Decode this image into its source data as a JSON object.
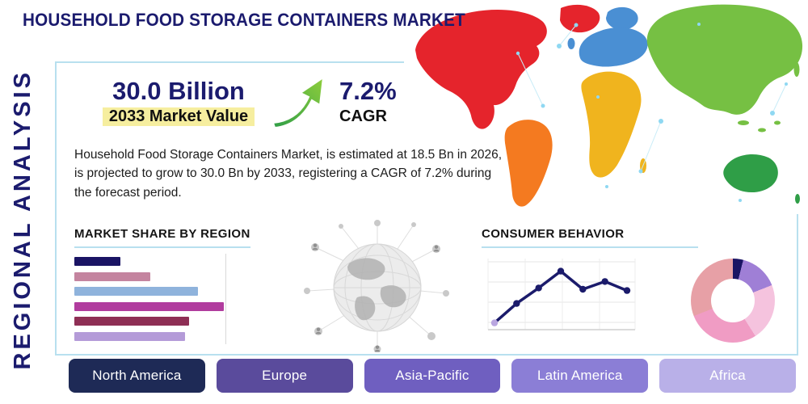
{
  "page": {
    "title": "HOUSEHOLD FOOD STORAGE CONTAINERS MARKET",
    "side_label": "REGIONAL ANALYSIS"
  },
  "stats": {
    "market_value": {
      "value": "30.0 Billion",
      "label": "2033 Market Value"
    },
    "cagr": {
      "value": "7.2%",
      "label": "CAGR"
    }
  },
  "description": "Household Food Storage Containers Market, is estimated at 18.5 Bn in 2026, is projected to grow to 30.0 Bn by 2033, registering a CAGR of 7.2% during the forecast period.",
  "sections": {
    "market_share_title": "MARKET SHARE BY REGION",
    "consumer_behavior_title": "CONSUMER BEHAVIOR"
  },
  "regions": [
    {
      "label": "North America",
      "color": "#1e2a56"
    },
    {
      "label": "Europe",
      "color": "#5a4b9c"
    },
    {
      "label": "Asia-Pacific",
      "color": "#6f5fc0"
    },
    {
      "label": "Latin America",
      "color": "#8b7ed6"
    },
    {
      "label": "Africa",
      "color": "#b9b0e8"
    }
  ],
  "map": {
    "colors": {
      "north_america": "#e5242c",
      "greenland": "#e5242c",
      "south_america": "#f47a20",
      "europe": "#4a8fd3",
      "scandinavia": "#4a8fd3",
      "africa": "#f0b41e",
      "asia": "#76c043",
      "australia": "#2f9e47",
      "network_dot": "#8fd8f2"
    }
  },
  "chart_data": [
    {
      "type": "bar",
      "title": "MARKET SHARE BY REGION",
      "orientation": "horizontal",
      "values": [
        26,
        43,
        70,
        85,
        65,
        63
      ],
      "unit": "relative-width-%",
      "colors": [
        "#1a1464",
        "#c4849f",
        "#8fb3dc",
        "#b13c9e",
        "#8e2f55",
        "#b49bd8"
      ],
      "grid": true
    },
    {
      "type": "line",
      "title": "CONSUMER BEHAVIOR",
      "x": [
        1,
        2,
        3,
        4,
        5,
        6,
        7
      ],
      "values": [
        8,
        38,
        62,
        88,
        60,
        72,
        58
      ],
      "unit": "relative-height-%",
      "color": "#1b1b6b",
      "first_marker_color": "#b9a6e0",
      "grid": true
    },
    {
      "type": "pie",
      "donut": true,
      "title": "Regional share donut",
      "values": [
        4,
        15,
        22,
        28,
        31
      ],
      "colors": [
        "#1a1464",
        "#9f7fd6",
        "#f5c3de",
        "#f09cc4",
        "#e7a0a6"
      ]
    }
  ],
  "accent": {
    "panel_border": "#b8e0ef",
    "navy": "#1b1b6e",
    "highlight": "#f6ee9f",
    "arrow_green_light": "#8fce3c",
    "arrow_green_dark": "#2f9e47"
  }
}
